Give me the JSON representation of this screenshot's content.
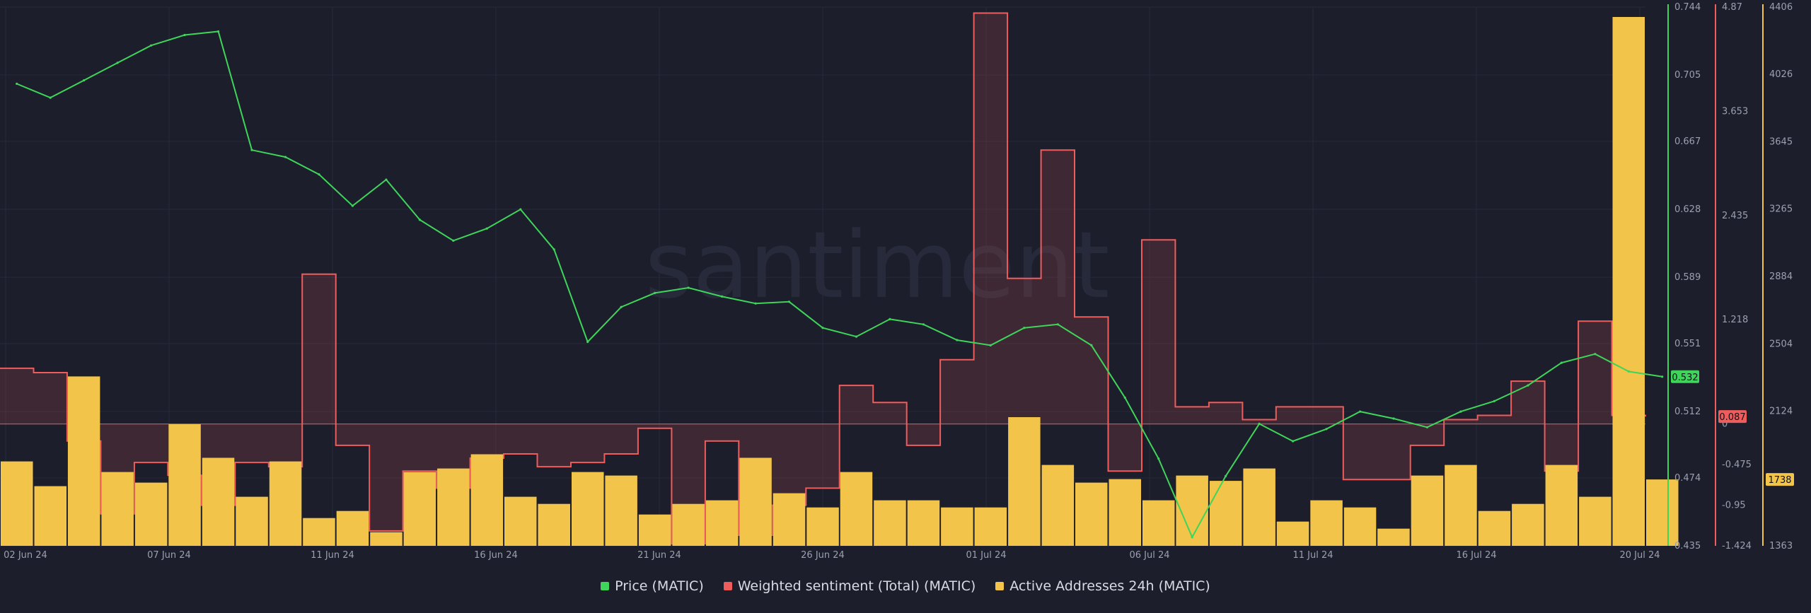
{
  "watermark": "santiment",
  "colors": {
    "background": "#1c1e2b",
    "price": "#3fd45a",
    "sentiment": "#ef5c5c",
    "sentiment_fill": "#3a2530",
    "active": "#f3c44a",
    "grid": "#262939"
  },
  "chart_data": {
    "type": "line",
    "x_axis_ticks": [
      "02 Jun 24",
      "07 Jun 24",
      "11 Jun 24",
      "16 Jun 24",
      "21 Jun 24",
      "26 Jun 24",
      "01 Jul 24",
      "06 Jul 24",
      "11 Jul 24",
      "16 Jul 24",
      "20 Jul 24"
    ],
    "x_range": [
      "2024-06-01",
      "2024-07-20"
    ],
    "axes": {
      "price": {
        "ticks": [
          "0.744",
          "0.705",
          "0.667",
          "0.628",
          "0.589",
          "0.551",
          "0.512",
          "0.474",
          "0.435"
        ],
        "range": [
          0.435,
          0.744
        ]
      },
      "sentiment": {
        "ticks": [
          "4.87",
          "3.653",
          "2.435",
          "1.218",
          "0",
          "-0.475",
          "-0.95",
          "-1.424"
        ],
        "range": [
          -1.424,
          4.87
        ]
      },
      "active": {
        "ticks": [
          "4406",
          "4026",
          "3645",
          "3265",
          "2884",
          "2504",
          "2124",
          "1738",
          "1363"
        ],
        "range": [
          1363,
          4406
        ]
      }
    },
    "current_values": {
      "price": "0.532",
      "sentiment": "0.087",
      "active": "1738"
    },
    "series": [
      {
        "name": "Price (MATIC)",
        "type": "line",
        "axis": "price",
        "x": [
          "06-01",
          "06-02",
          "06-03",
          "06-04",
          "06-05",
          "06-06",
          "06-07",
          "06-08",
          "06-09",
          "06-10",
          "06-11",
          "06-12",
          "06-13",
          "06-14",
          "06-15",
          "06-16",
          "06-17",
          "06-18",
          "06-19",
          "06-20",
          "06-21",
          "06-22",
          "06-23",
          "06-24",
          "06-25",
          "06-26",
          "06-27",
          "06-28",
          "06-29",
          "06-30",
          "07-01",
          "07-02",
          "07-03",
          "07-04",
          "07-05",
          "07-06",
          "07-07",
          "07-08",
          "07-09",
          "07-10",
          "07-11",
          "07-12",
          "07-13",
          "07-14",
          "07-15",
          "07-16",
          "07-17",
          "07-18",
          "07-19",
          "07-20"
        ],
        "values": [
          0.7,
          0.692,
          0.702,
          0.712,
          0.722,
          0.728,
          0.73,
          0.662,
          0.658,
          0.648,
          0.63,
          0.645,
          0.622,
          0.61,
          0.617,
          0.628,
          0.605,
          0.552,
          0.572,
          0.58,
          0.583,
          0.578,
          0.574,
          0.575,
          0.56,
          0.555,
          0.565,
          0.562,
          0.553,
          0.55,
          0.56,
          0.562,
          0.55,
          0.52,
          0.485,
          0.44,
          0.475,
          0.505,
          0.495,
          0.502,
          0.512,
          0.508,
          0.503,
          0.512,
          0.518,
          0.527,
          0.54,
          0.545,
          0.535,
          0.532
        ]
      },
      {
        "name": "Weighted sentiment (Total) (MATIC)",
        "type": "step",
        "axis": "sentiment",
        "x": [
          "06-01",
          "06-02",
          "06-03",
          "06-04",
          "06-05",
          "06-06",
          "06-07",
          "06-08",
          "06-09",
          "06-10",
          "06-11",
          "06-12",
          "06-13",
          "06-14",
          "06-15",
          "06-16",
          "06-17",
          "06-18",
          "06-19",
          "06-20",
          "06-21",
          "06-22",
          "06-23",
          "06-24",
          "06-25",
          "06-26",
          "06-27",
          "06-28",
          "06-29",
          "06-30",
          "07-01",
          "07-02",
          "07-03",
          "07-04",
          "07-05",
          "07-06",
          "07-07",
          "07-08",
          "07-09",
          "07-10",
          "07-11",
          "07-12",
          "07-13",
          "07-14",
          "07-15",
          "07-16",
          "07-17",
          "07-18",
          "07-19",
          "07-20"
        ],
        "values": [
          0.65,
          0.6,
          -0.2,
          -1.05,
          -0.45,
          -0.6,
          -0.95,
          -0.45,
          -0.5,
          1.75,
          -0.25,
          -1.25,
          -0.55,
          -0.75,
          -0.4,
          -0.35,
          -0.5,
          -0.45,
          -0.35,
          -0.05,
          -1.4,
          -0.2,
          -1.3,
          -0.95,
          -0.75,
          0.45,
          0.25,
          -0.25,
          0.75,
          4.8,
          1.7,
          3.2,
          1.25,
          -0.55,
          2.15,
          0.2,
          0.25,
          0.05,
          0.2,
          0.2,
          -0.65,
          -0.65,
          -0.25,
          0.05,
          0.1,
          0.5,
          -0.55,
          1.2,
          0.1,
          0.087
        ]
      },
      {
        "name": "Active Addresses 24h (MATIC)",
        "type": "bar",
        "axis": "active",
        "x": [
          "06-01",
          "06-02",
          "06-03",
          "06-04",
          "06-05",
          "06-06",
          "06-07",
          "06-08",
          "06-09",
          "06-10",
          "06-11",
          "06-12",
          "06-13",
          "06-14",
          "06-15",
          "06-16",
          "06-17",
          "06-18",
          "06-19",
          "06-20",
          "06-21",
          "06-22",
          "06-23",
          "06-24",
          "06-25",
          "06-26",
          "06-27",
          "06-28",
          "06-29",
          "06-30",
          "07-01",
          "07-02",
          "07-03",
          "07-04",
          "07-05",
          "07-06",
          "07-07",
          "07-08",
          "07-09",
          "07-10",
          "07-11",
          "07-12",
          "07-13",
          "07-14",
          "07-15",
          "07-16",
          "07-17",
          "07-18",
          "07-19",
          "07-20"
        ],
        "values": [
          1840,
          1700,
          2320,
          1780,
          1720,
          2050,
          1860,
          1640,
          1840,
          1520,
          1560,
          1440,
          1780,
          1800,
          1880,
          1640,
          1600,
          1780,
          1760,
          1540,
          1600,
          1620,
          1860,
          1660,
          1580,
          1780,
          1620,
          1620,
          1580,
          1580,
          2090,
          1820,
          1720,
          1740,
          1620,
          1760,
          1730,
          1800,
          1500,
          1620,
          1580,
          1460,
          1760,
          1820,
          1560,
          1600,
          1820,
          1640,
          4350,
          1738
        ]
      }
    ]
  },
  "legend": [
    {
      "label": "Price (MATIC)",
      "color": "#3fd45a"
    },
    {
      "label": "Weighted sentiment (Total) (MATIC)",
      "color": "#ef5c5c"
    },
    {
      "label": "Active Addresses 24h (MATIC)",
      "color": "#f3c44a"
    }
  ]
}
